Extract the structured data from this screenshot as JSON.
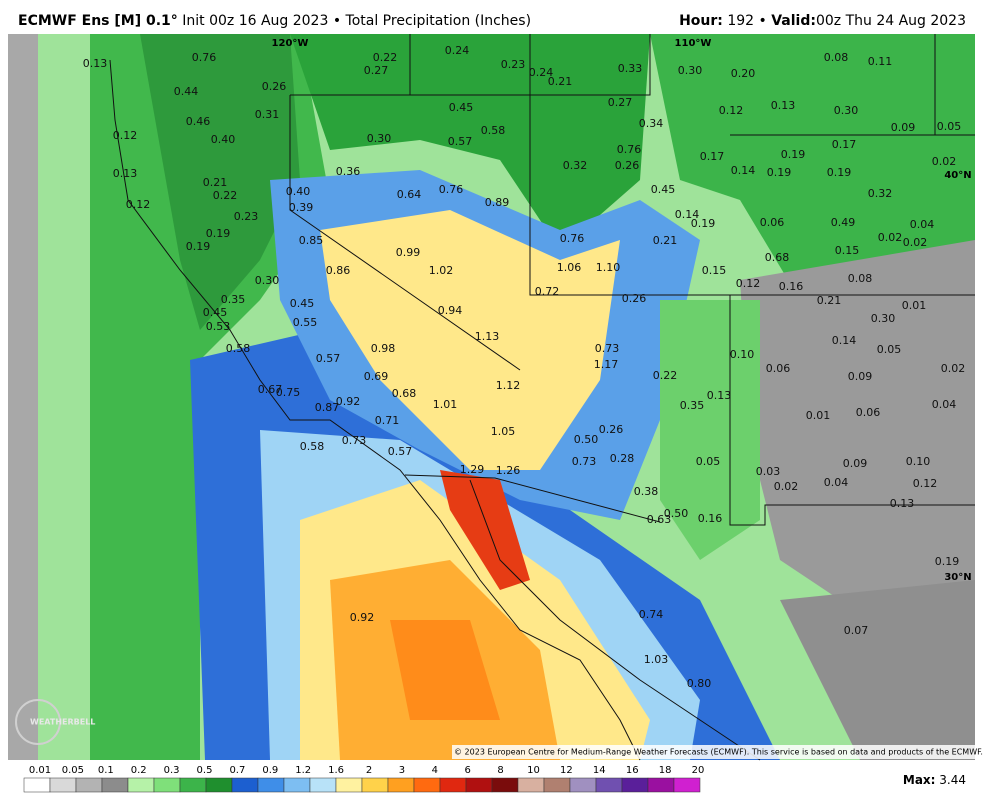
{
  "header": {
    "model": "ECMWF Ens [M] 0.1°",
    "init": "Init 00z 16 Aug 2023 • Total Precipitation (Inches)",
    "hour_label": "Hour:",
    "hour": "192 •",
    "valid_label": "Valid:",
    "valid": "00z Thu 24 Aug 2023"
  },
  "grid_labels": [
    "120°W",
    "110°W",
    "40°N",
    "30°N"
  ],
  "labels": [
    "0.13",
    "0.76",
    "0.22",
    "0.27",
    "0.24",
    "0.23",
    "0.24",
    "0.21",
    "0.33",
    "0.30",
    "0.20",
    "0.08",
    "0.11",
    "0.44",
    "0.26",
    "0.45",
    "0.27",
    "0.12",
    "0.13",
    "0.30",
    "0.31",
    "0.46",
    "0.58",
    "0.34",
    "0.09",
    "0.05",
    "0.12",
    "0.40",
    "0.30",
    "0.57",
    "0.76",
    "0.17",
    "0.19",
    "0.17",
    "0.02",
    "0.32",
    "0.26",
    "0.14",
    "0.19",
    "0.19",
    "0.13",
    "0.36",
    "0.21",
    "0.45",
    "0.32",
    "0.22",
    "0.40",
    "0.64",
    "0.76",
    "0.89",
    "0.12",
    "0.39",
    "0.23",
    "0.14",
    "0.19",
    "0.06",
    "0.49",
    "0.04",
    "0.19",
    "0.85",
    "0.76",
    "0.21",
    "0.02",
    "0.02",
    "0.19",
    "0.99",
    "0.15",
    "0.68",
    "1.06",
    "1.10",
    "1.02",
    "0.86",
    "0.15",
    "0.30",
    "0.08",
    "0.12",
    "0.16",
    "0.72",
    "0.26",
    "0.21",
    "0.35",
    "0.45",
    "0.94",
    "0.01",
    "0.45",
    "0.53",
    "0.55",
    "0.30",
    "1.13",
    "0.14",
    "0.05",
    "0.58",
    "0.98",
    "0.73",
    "0.10",
    "0.57",
    "1.17",
    "0.06",
    "0.02",
    "0.22",
    "0.69",
    "0.09",
    "1.12",
    "0.67",
    "0.75",
    "0.68",
    "0.13",
    "0.92",
    "1.01",
    "0.87",
    "0.35",
    "0.04",
    "0.71",
    "0.01",
    "0.06",
    "0.26",
    "1.05",
    "0.73",
    "0.50",
    "0.58",
    "0.57",
    "0.28",
    "0.73",
    "0.05",
    "0.09",
    "0.10",
    "1.29",
    "1.26",
    "0.03",
    "0.04",
    "0.12",
    "0.02",
    "0.38",
    "0.13",
    "0.50",
    "0.63",
    "0.16",
    "0.19",
    "0.92",
    "0.74",
    "0.07",
    "1.03",
    "0.80"
  ],
  "copyright": "© 2023 European Centre for Medium-Range Weather Forecasts (ECMWF). This service is based on data and products of the ECMWF.",
  "logo": "WEATHERBELL",
  "colorbar": {
    "labels": [
      "0.01",
      "0.05",
      "0.1",
      "0.2",
      "0.3",
      "0.5",
      "0.7",
      "0.9",
      "1.2",
      "1.6",
      "2",
      "3",
      "4",
      "6",
      "8",
      "10",
      "12",
      "14",
      "16",
      "18",
      "20"
    ]
  },
  "max": {
    "label": "Max:",
    "value": "3.44"
  }
}
